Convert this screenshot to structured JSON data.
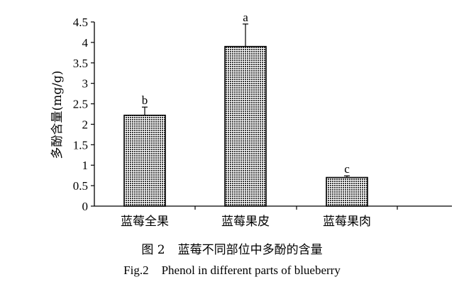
{
  "chart_data": {
    "type": "bar",
    "categories": [
      "蓝莓全果",
      "蓝莓果皮",
      "蓝莓果肉"
    ],
    "values": [
      2.22,
      3.9,
      0.7
    ],
    "errors": [
      0.2,
      0.55,
      0.04
    ],
    "letters": [
      "b",
      "a",
      "c"
    ],
    "ylabel": "多酚含量(mg/g)",
    "ylim": [
      0,
      4.5
    ],
    "yticks": [
      0,
      0.5,
      1,
      1.5,
      2,
      2.5,
      3,
      3.5,
      4,
      4.5
    ],
    "ytick_labels": [
      "0",
      "0.5",
      "1",
      "1.5",
      "2",
      "2.5",
      "3",
      "3.5",
      "4",
      "4.5"
    ],
    "bar_fill": "#555555",
    "grid": false,
    "legend": "none"
  },
  "captions": {
    "cn_num": "图 2",
    "cn_text": "蓝莓不同部位中多酚的含量",
    "en_num": "Fig.2",
    "en_text": "Phenol in different parts of blueberry"
  }
}
